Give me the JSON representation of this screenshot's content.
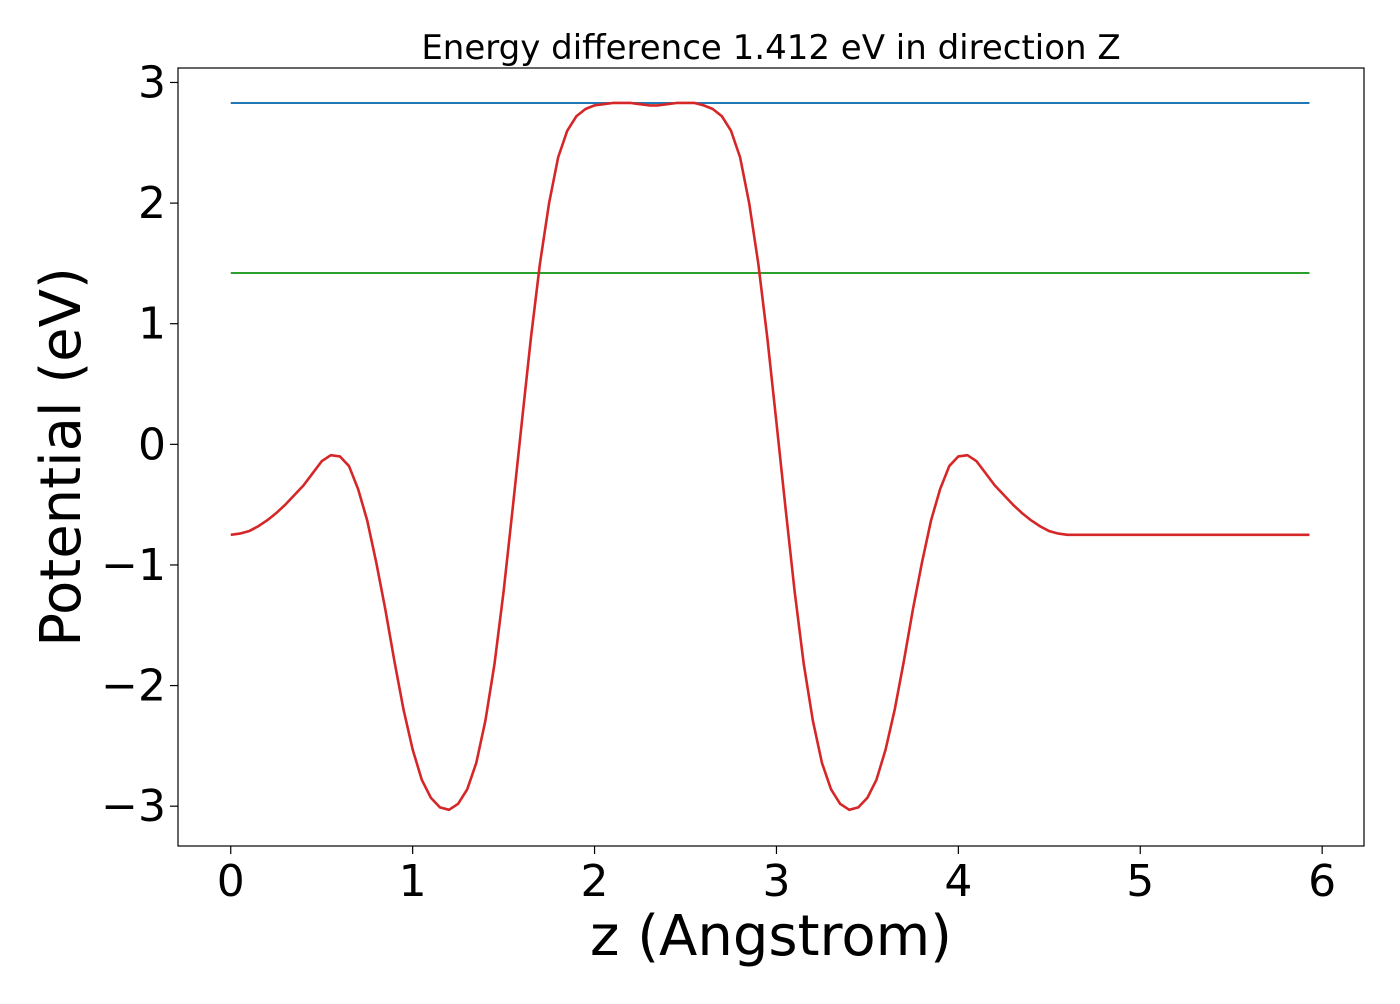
{
  "chart_data": {
    "type": "line",
    "title": "Energy difference 1.412 eV in direction Z",
    "xlabel": "z (Angstrom)",
    "ylabel": "Potential (eV)",
    "xlim": [
      -0.29,
      6.23
    ],
    "ylim": [
      -3.33,
      3.12
    ],
    "xticks": [
      0,
      1,
      2,
      3,
      4,
      5,
      6
    ],
    "yticks": [
      3,
      2,
      1,
      0,
      -1,
      -2,
      -3
    ],
    "xtick_labels": [
      "0",
      "1",
      "2",
      "3",
      "4",
      "5",
      "6"
    ],
    "ytick_labels": [
      "3",
      "2",
      "1",
      "0",
      "−1",
      "−2",
      "−3"
    ],
    "grid": false,
    "series": [
      {
        "color": "#1f77b4",
        "x": [
          0,
          5.93
        ],
        "y": [
          2.83,
          2.83
        ]
      },
      {
        "color": "#2ca02c",
        "x": [
          0,
          5.93
        ],
        "y": [
          1.42,
          1.42
        ]
      },
      {
        "color": "#d62728",
        "x": [
          0.0,
          0.05,
          0.1,
          0.15,
          0.2,
          0.25,
          0.3,
          0.35,
          0.4,
          0.45,
          0.5,
          0.55,
          0.6,
          0.65,
          0.7,
          0.75,
          0.8,
          0.85,
          0.9,
          0.95,
          1.0,
          1.05,
          1.1,
          1.15,
          1.2,
          1.25,
          1.3,
          1.35,
          1.4,
          1.45,
          1.5,
          1.55,
          1.6,
          1.65,
          1.7,
          1.75,
          1.8,
          1.85,
          1.9,
          1.95,
          2.0,
          2.05,
          2.1,
          2.15,
          2.2,
          2.25,
          2.3,
          2.35,
          2.4,
          2.45,
          2.5,
          2.55,
          2.6,
          2.65,
          2.7,
          2.75,
          2.8,
          2.85,
          2.9,
          2.95,
          3.0,
          3.05,
          3.1,
          3.15,
          3.2,
          3.25,
          3.3,
          3.35,
          3.4,
          3.45,
          3.5,
          3.55,
          3.6,
          3.65,
          3.7,
          3.75,
          3.8,
          3.85,
          3.9,
          3.95,
          4.0,
          4.05,
          4.1,
          4.15,
          4.2,
          4.25,
          4.3,
          4.35,
          4.4,
          4.45,
          4.5,
          4.55,
          4.6,
          4.65,
          4.7,
          4.75,
          4.8,
          4.85,
          4.9,
          4.95,
          5.0,
          5.05,
          5.1,
          5.15,
          5.2,
          5.25,
          5.3,
          5.35,
          5.4,
          5.45,
          5.5,
          5.55,
          5.6,
          5.65,
          5.7,
          5.75,
          5.8,
          5.85,
          5.9,
          5.93
        ],
        "y": [
          -0.75,
          -0.74,
          -0.72,
          -0.68,
          -0.63,
          -0.57,
          -0.5,
          -0.42,
          -0.34,
          -0.24,
          -0.14,
          -0.09,
          -0.1,
          -0.18,
          -0.37,
          -0.63,
          -0.98,
          -1.37,
          -1.8,
          -2.2,
          -2.53,
          -2.78,
          -2.93,
          -3.01,
          -3.03,
          -2.98,
          -2.86,
          -2.64,
          -2.29,
          -1.82,
          -1.22,
          -0.53,
          0.18,
          0.88,
          1.5,
          2.0,
          2.38,
          2.6,
          2.72,
          2.78,
          2.81,
          2.82,
          2.83,
          2.83,
          2.83,
          2.82,
          2.81,
          2.81,
          2.82,
          2.83,
          2.83,
          2.83,
          2.81,
          2.78,
          2.72,
          2.6,
          2.38,
          2.0,
          1.5,
          0.88,
          0.18,
          -0.53,
          -1.22,
          -1.82,
          -2.29,
          -2.64,
          -2.86,
          -2.98,
          -3.03,
          -3.01,
          -2.93,
          -2.78,
          -2.53,
          -2.2,
          -1.8,
          -1.37,
          -0.98,
          -0.63,
          -0.37,
          -0.18,
          -0.1,
          -0.09,
          -0.14,
          -0.24,
          -0.34,
          -0.42,
          -0.5,
          -0.57,
          -0.63,
          -0.68,
          -0.72,
          -0.74,
          -0.75,
          -0.75,
          -0.75,
          -0.75,
          -0.75,
          -0.75,
          -0.75,
          -0.75,
          -0.75,
          -0.75,
          -0.75,
          -0.75,
          -0.75,
          -0.75,
          -0.75,
          -0.75,
          -0.75,
          -0.75,
          -0.75,
          -0.75,
          -0.75,
          -0.75,
          -0.75,
          -0.75,
          -0.75,
          -0.75,
          -0.75,
          -0.75
        ]
      }
    ]
  }
}
